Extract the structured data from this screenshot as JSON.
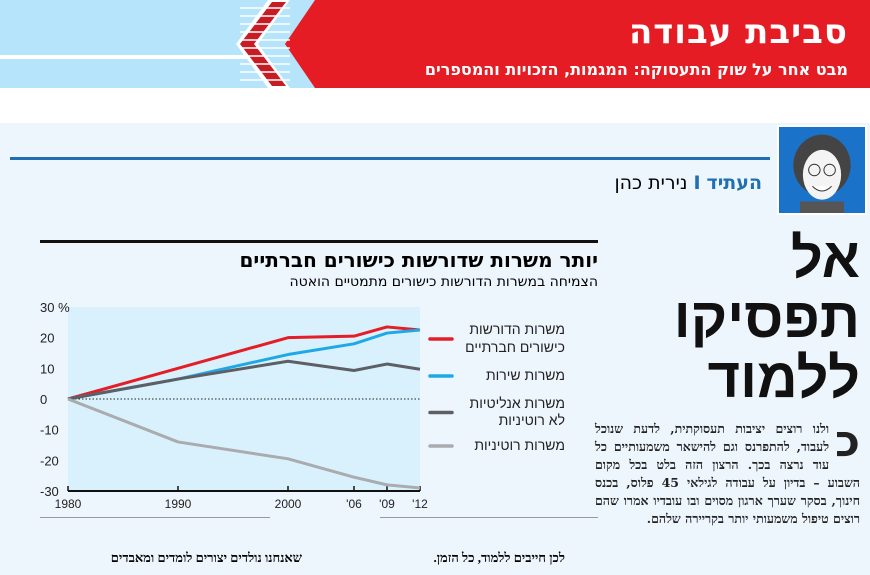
{
  "header": {
    "title": "סביבת עבודה",
    "subtitle": "מבט אחר על שוק התעסוקה: המגמות, הזכויות והמספרים",
    "colors": {
      "red": "#e51c24",
      "light_blue": "#b6e4fa"
    }
  },
  "byline": {
    "section": "העתיד",
    "separator": "I",
    "author": "נירית כהן"
  },
  "article": {
    "headline_lines": [
      "אל",
      "תפסיקו",
      "ללמוד"
    ],
    "drop_cap": "כ",
    "body": "ולנו רוצים יציבות תעסוקתית, לדעת שנוכל לעבוד, להתפרנס וגם להישאר משמעותיים כל עוד נרצה בכך. הרצון הזה בלט בכל מקום השבוע – בדיון על עבודה לגילאי 45 פלוס, בכנס חינוך, בסקר שערך ארגון מסוים ובו עובדיו אמרו שהם רוצים טיפול משמעותי יותר בקריירה שלהם.",
    "col2_text": "לכן חייבים ללמוד, כל הזמן.",
    "col3_text": "שאנחנו נולדים יצורים לומדים ומאבדים"
  },
  "chart_data": {
    "type": "line",
    "title": "יותר משרות שדורשות כישורים חברתיים",
    "subtitle": "הצמיחה במשרות הדורשות כישורים מתמטיים הואטה",
    "x": [
      1980,
      1990,
      2000,
      2006,
      2009,
      2012
    ],
    "x_tick_labels": [
      "1980",
      "1990",
      "2000",
      "'06",
      "'09",
      "'12"
    ],
    "y_tick_labels": [
      "30 %",
      "20",
      "10",
      "0",
      "-10",
      "-20",
      "-30"
    ],
    "ylim": [
      -30,
      30
    ],
    "zero_line": "dotted",
    "series": [
      {
        "name": "משרות הדורשות כישורים חברתיים",
        "legend_lines": [
          "משרות הדורשות",
          "כישורים חברתיים"
        ],
        "color": "#e31e26",
        "values": [
          0,
          10,
          20,
          20.5,
          23.5,
          22.5
        ]
      },
      {
        "name": "משרות שירות",
        "legend_lines": [
          "משרות שירות"
        ],
        "color": "#1ea9e6",
        "values": [
          0,
          6.5,
          14.5,
          18,
          21.5,
          22.5
        ]
      },
      {
        "name": "משרות אנליטיות לא רוטיניות",
        "legend_lines": [
          "משרות אנליטיות",
          "לא רוטיניות"
        ],
        "color": "#5d5f64",
        "values": [
          0,
          6.5,
          12.3,
          9.3,
          11.4,
          9.7
        ]
      },
      {
        "name": "משרות רוטיניות",
        "legend_lines": [
          "משרות רוטיניות"
        ],
        "color": "#a9abae",
        "values": [
          0,
          -14,
          -19.5,
          -25.5,
          -28,
          -29
        ]
      }
    ],
    "legend_position": "right"
  }
}
